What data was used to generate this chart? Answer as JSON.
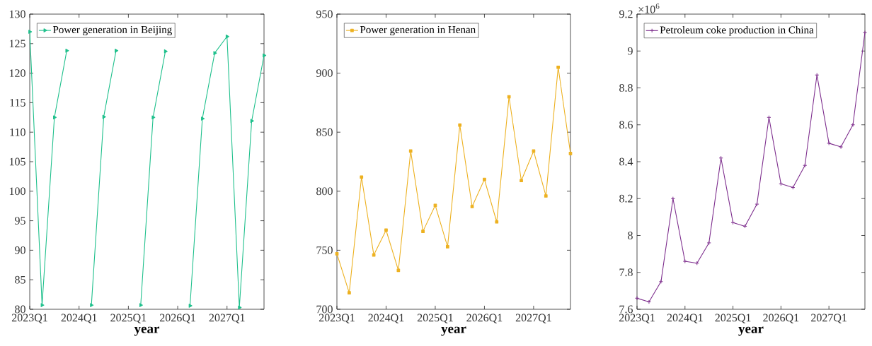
{
  "chart_data": [
    {
      "type": "line",
      "xlabel": "year",
      "categories": [
        "2023Q1",
        null,
        null,
        null,
        "2024Q1",
        null,
        null,
        null,
        "2025Q1",
        null,
        null,
        null,
        "2026Q1",
        null,
        null,
        null,
        "2027Q1",
        null,
        null,
        null
      ],
      "series": [
        {
          "name": "Power generation in Beijing",
          "color": "#1fc08c",
          "values": [
            127.0,
            80.7,
            112.5,
            123.8,
            null,
            80.7,
            112.6,
            123.8,
            null,
            80.7,
            112.5,
            123.7,
            null,
            80.6,
            112.3,
            123.4,
            126.2,
            80.3,
            111.9,
            123.0
          ]
        }
      ],
      "ylim": [
        80,
        130
      ],
      "yticks": [
        80,
        85,
        90,
        95,
        100,
        105,
        110,
        115,
        120,
        125,
        130
      ],
      "marker": "triangle",
      "legend": "top left"
    },
    {
      "type": "line",
      "xlabel": "year",
      "categories": [
        "2023Q1",
        null,
        null,
        null,
        "2024Q1",
        null,
        null,
        null,
        "2025Q1",
        null,
        null,
        null,
        "2026Q1",
        null,
        null,
        null,
        "2027Q1",
        null,
        null,
        null
      ],
      "series": [
        {
          "name": "Power generation in Henan",
          "color": "#edb120",
          "values": [
            747,
            714,
            812,
            746,
            767,
            733,
            834,
            766,
            788,
            753,
            856,
            787,
            810,
            774,
            880,
            809,
            834,
            796,
            905,
            832
          ]
        }
      ],
      "ylim": [
        700,
        950
      ],
      "yticks": [
        700,
        750,
        800,
        850,
        900,
        950
      ],
      "marker": "square",
      "legend": "top left"
    },
    {
      "type": "line",
      "xlabel": "year",
      "annotations": [
        "×10$^{6}$"
      ],
      "categories": [
        "2023Q1",
        null,
        null,
        null,
        "2024Q1",
        null,
        null,
        null,
        "2025Q1",
        null,
        null,
        null,
        "2026Q1",
        null,
        null,
        null,
        "2027Q1",
        null,
        null,
        null
      ],
      "series": [
        {
          "name": "Petroleum coke production in China",
          "color": "#7e2f8e",
          "values": [
            7.66,
            7.64,
            7.75,
            8.2,
            7.86,
            7.85,
            7.96,
            8.42,
            8.07,
            8.05,
            8.17,
            8.64,
            8.28,
            8.26,
            8.38,
            8.87,
            8.5,
            8.48,
            8.6,
            9.1
          ]
        }
      ],
      "ylim": [
        7.6,
        9.2
      ],
      "yticks": [
        7.6,
        7.8,
        8,
        8.2,
        8.4,
        8.6,
        8.8,
        9,
        9.2
      ],
      "marker": "cross",
      "legend": "top left"
    }
  ]
}
